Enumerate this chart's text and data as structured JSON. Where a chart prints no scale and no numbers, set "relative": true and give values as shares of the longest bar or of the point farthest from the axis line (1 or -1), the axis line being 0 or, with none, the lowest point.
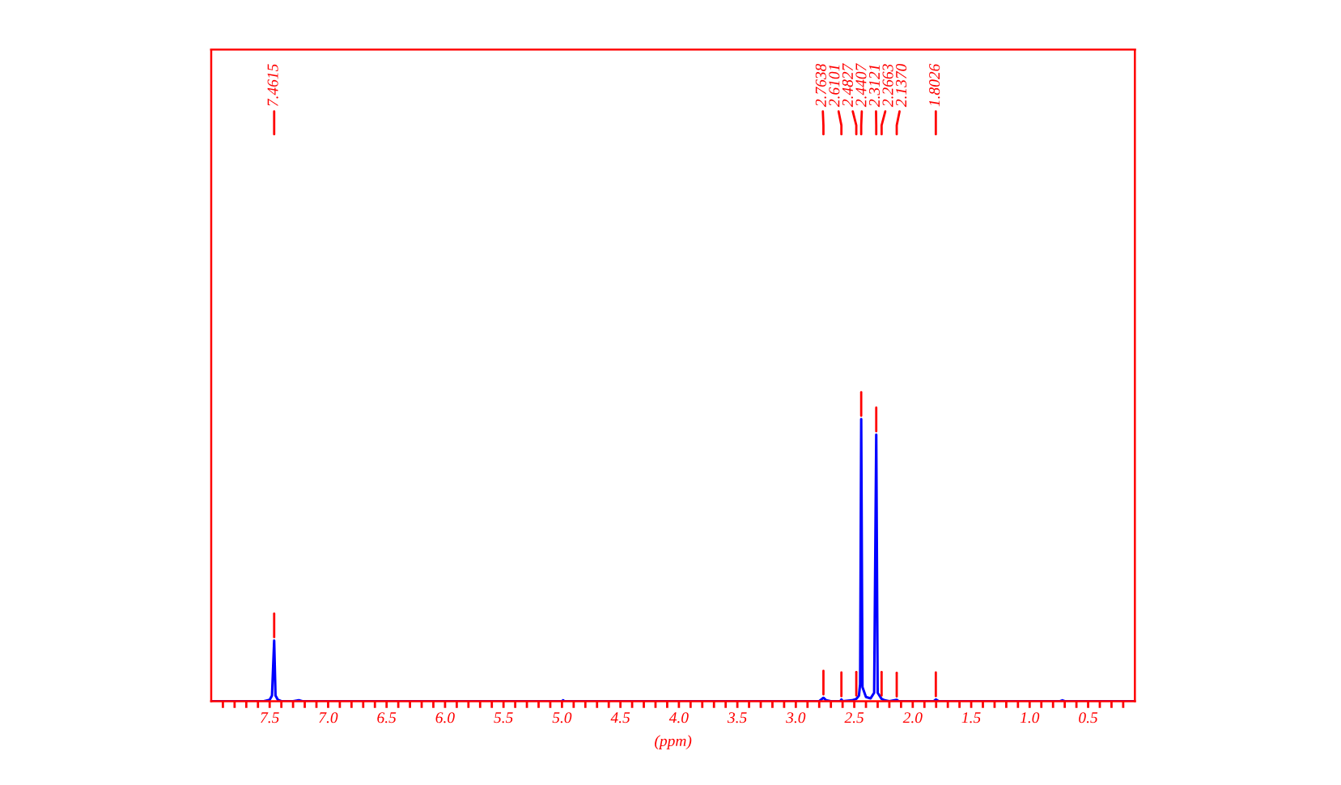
{
  "chart_data": {
    "type": "line",
    "relative": true,
    "grid": false,
    "tick_labels": "x",
    "xlabel": "(ppm)",
    "xlim": [
      8.0,
      0.1
    ],
    "xticks": [
      {
        "value": 7.9,
        "label": null
      },
      {
        "value": 7.8,
        "label": null
      },
      {
        "value": 7.7,
        "label": null
      },
      {
        "value": 7.6,
        "label": null
      },
      {
        "value": 7.5,
        "label": "7.5"
      },
      {
        "value": 7.4,
        "label": null
      },
      {
        "value": 7.3,
        "label": null
      },
      {
        "value": 7.2,
        "label": null
      },
      {
        "value": 7.1,
        "label": null
      },
      {
        "value": 7.0,
        "label": "7.0"
      },
      {
        "value": 6.9,
        "label": null
      },
      {
        "value": 6.8,
        "label": null
      },
      {
        "value": 6.7,
        "label": null
      },
      {
        "value": 6.6,
        "label": null
      },
      {
        "value": 6.5,
        "label": "6.5"
      },
      {
        "value": 6.4,
        "label": null
      },
      {
        "value": 6.3,
        "label": null
      },
      {
        "value": 6.2,
        "label": null
      },
      {
        "value": 6.1,
        "label": null
      },
      {
        "value": 6.0,
        "label": "6.0"
      },
      {
        "value": 5.9,
        "label": null
      },
      {
        "value": 5.8,
        "label": null
      },
      {
        "value": 5.7,
        "label": null
      },
      {
        "value": 5.6,
        "label": null
      },
      {
        "value": 5.5,
        "label": "5.5"
      },
      {
        "value": 5.4,
        "label": null
      },
      {
        "value": 5.3,
        "label": null
      },
      {
        "value": 5.2,
        "label": null
      },
      {
        "value": 5.1,
        "label": null
      },
      {
        "value": 5.0,
        "label": "5.0"
      },
      {
        "value": 4.9,
        "label": null
      },
      {
        "value": 4.8,
        "label": null
      },
      {
        "value": 4.7,
        "label": null
      },
      {
        "value": 4.6,
        "label": null
      },
      {
        "value": 4.5,
        "label": "4.5"
      },
      {
        "value": 4.4,
        "label": null
      },
      {
        "value": 4.3,
        "label": null
      },
      {
        "value": 4.2,
        "label": null
      },
      {
        "value": 4.1,
        "label": null
      },
      {
        "value": 4.0,
        "label": "4.0"
      },
      {
        "value": 3.9,
        "label": null
      },
      {
        "value": 3.8,
        "label": null
      },
      {
        "value": 3.7,
        "label": null
      },
      {
        "value": 3.6,
        "label": null
      },
      {
        "value": 3.5,
        "label": "3.5"
      },
      {
        "value": 3.4,
        "label": null
      },
      {
        "value": 3.3,
        "label": null
      },
      {
        "value": 3.2,
        "label": null
      },
      {
        "value": 3.1,
        "label": null
      },
      {
        "value": 3.0,
        "label": "3.0"
      },
      {
        "value": 2.9,
        "label": null
      },
      {
        "value": 2.8,
        "label": null
      },
      {
        "value": 2.7,
        "label": null
      },
      {
        "value": 2.6,
        "label": null
      },
      {
        "value": 2.5,
        "label": "2.5"
      },
      {
        "value": 2.4,
        "label": null
      },
      {
        "value": 2.3,
        "label": null
      },
      {
        "value": 2.2,
        "label": null
      },
      {
        "value": 2.1,
        "label": null
      },
      {
        "value": 2.0,
        "label": "2.0"
      },
      {
        "value": 1.9,
        "label": null
      },
      {
        "value": 1.8,
        "label": null
      },
      {
        "value": 1.7,
        "label": null
      },
      {
        "value": 1.6,
        "label": null
      },
      {
        "value": 1.5,
        "label": "1.5"
      },
      {
        "value": 1.4,
        "label": null
      },
      {
        "value": 1.3,
        "label": null
      },
      {
        "value": 1.2,
        "label": null
      },
      {
        "value": 1.1,
        "label": null
      },
      {
        "value": 1.0,
        "label": "1.0"
      },
      {
        "value": 0.9,
        "label": null
      },
      {
        "value": 0.8,
        "label": null
      },
      {
        "value": 0.7,
        "label": null
      },
      {
        "value": 0.6,
        "label": null
      },
      {
        "value": 0.5,
        "label": "0.5"
      },
      {
        "value": 0.4,
        "label": null
      },
      {
        "value": 0.3,
        "label": null
      },
      {
        "value": 0.2,
        "label": null
      }
    ],
    "x": [
      8.0,
      7.55,
      7.5,
      7.48,
      7.4615,
      7.45,
      7.43,
      7.4,
      7.3,
      7.25,
      7.22,
      5.0,
      4.99,
      4.98,
      2.8,
      2.7638,
      2.74,
      2.7,
      2.62,
      2.6101,
      2.6,
      2.52,
      2.4827,
      2.46,
      2.45,
      2.4407,
      2.43,
      2.4,
      2.36,
      2.33,
      2.3121,
      2.3,
      2.2663,
      2.24,
      2.2,
      2.137,
      2.12,
      1.82,
      1.8026,
      1.78,
      0.74,
      0.72,
      0.7,
      0.1
    ],
    "series": [
      {
        "color": "#0000ff",
        "values": [
          0,
          0,
          0.005,
          0.02,
          0.215,
          0.02,
          0.005,
          0,
          0,
          0.003,
          0,
          0,
          0.003,
          0,
          0,
          0.012,
          0.003,
          0,
          0,
          0.006,
          0,
          0.003,
          0.008,
          0.02,
          0.06,
          1.0,
          0.05,
          0.015,
          0.01,
          0.03,
          0.945,
          0.03,
          0.008,
          0.003,
          0,
          0.005,
          0,
          0,
          0.006,
          0,
          0,
          0.003,
          0,
          0
        ]
      }
    ],
    "annotations": [
      {
        "text": "7.4615",
        "x": 7.4615
      },
      {
        "text": "2.7638",
        "x": 2.7638
      },
      {
        "text": "2.6101",
        "x": 2.6101
      },
      {
        "text": "2.4827",
        "x": 2.4827
      },
      {
        "text": "2.4407",
        "x": 2.4407
      },
      {
        "text": "2.3121",
        "x": 2.3121
      },
      {
        "text": "2.2663",
        "x": 2.2663
      },
      {
        "text": "2.1370",
        "x": 2.137
      },
      {
        "text": "1.8026",
        "x": 1.8026
      }
    ]
  }
}
